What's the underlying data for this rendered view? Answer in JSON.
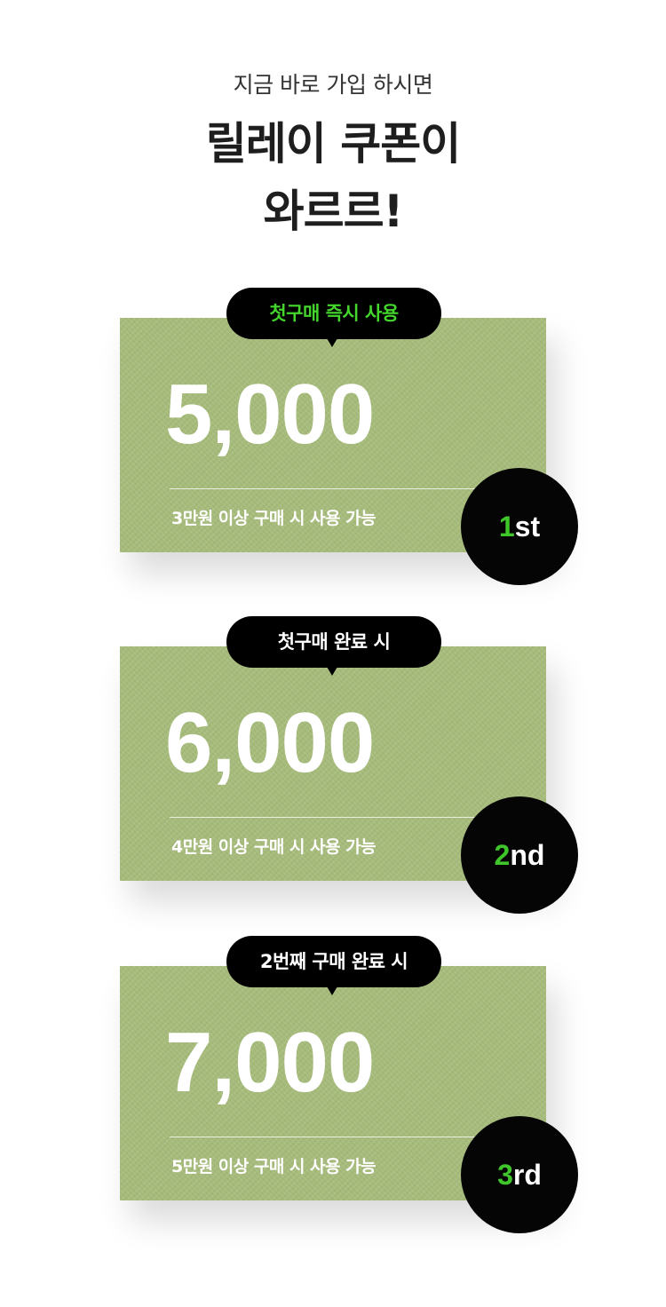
{
  "header": {
    "subtitle": "지금 바로 가입 하시면",
    "title_line1": "릴레이 쿠폰이",
    "title_line2": "와르르!"
  },
  "coupons": [
    {
      "badge": "첫구매 즉시 사용",
      "amount": "5,000",
      "condition": "3만원 이상 구매 시 사용 가능",
      "rank_number": "1",
      "rank_suffix": "st"
    },
    {
      "badge": "첫구매 완료 시",
      "amount": "6,000",
      "condition": "4만원 이상 구매 시 사용 가능",
      "rank_number": "2",
      "rank_suffix": "nd"
    },
    {
      "badge": "2번째 구매 완료 시",
      "amount": "7,000",
      "condition": "5만원 이상 구매 시 사용 가능",
      "rank_number": "3",
      "rank_suffix": "rd"
    }
  ],
  "colors": {
    "card_green": "#a8bd7c",
    "accent_green": "#44d62c",
    "rank_green": "#3ec62a",
    "black": "#000000"
  }
}
